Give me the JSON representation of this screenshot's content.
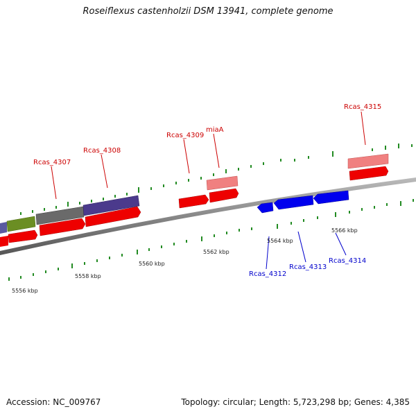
{
  "title": "Roseiflexus castenholzii DSM 13941, complete genome",
  "accession": "Accession: NC_009767",
  "summary": "Topology: circular; Length: 5,723,298 bp; Genes: 4,385",
  "colors": {
    "forward_label": "#cc0000",
    "reverse_label": "#0000cc",
    "tick": "#228b22",
    "backbone": "#888888"
  },
  "scale_labels": [
    "5556 kbp",
    "5558 kbp",
    "5560 kbp",
    "5562 kbp",
    "5564 kbp",
    "5566 kbp"
  ],
  "gene_labels": {
    "forward": [
      "Rcas_4307",
      "Rcas_4308",
      "Rcas_4309",
      "miaA",
      "Rcas_4315"
    ],
    "reverse": [
      "Rcas_4312",
      "Rcas_4313",
      "Rcas_4314"
    ]
  }
}
